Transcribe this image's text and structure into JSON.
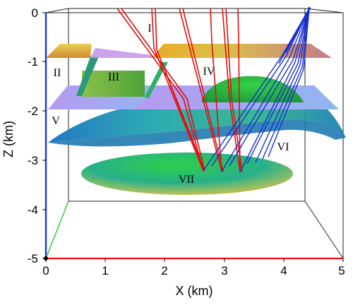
{
  "axes": {
    "x_label": "X (km)",
    "z_label": "Z (km)",
    "x_ticks": [
      "0",
      "1",
      "2",
      "3",
      "4",
      "5"
    ],
    "z_ticks": [
      "0",
      "-1",
      "-2",
      "-3",
      "-4",
      "-5"
    ],
    "x_range_km": [
      0,
      5
    ],
    "z_range_km": [
      -5,
      0
    ]
  },
  "regions": [
    "I",
    "II",
    "III",
    "IV",
    "V",
    "VI",
    "VII"
  ],
  "colors": {
    "x_axis": "#ff0000",
    "z_axis": "#1a3fc8",
    "y_axis": "#33cc33",
    "reflected_rays": "#e01010",
    "transmitted_rays": "#1a2fd0",
    "box_edges": "#222222"
  },
  "features": {
    "top_interface": "horizontal-layer-gradient-orange",
    "middle_interface": "horizontal-layer-gradient-violet",
    "curved_interface": "undulating-surface-blue-green",
    "lens_upper": "dome-green",
    "lens_lower": "lens-green-yellow",
    "source": "ray-fan-top-right"
  }
}
